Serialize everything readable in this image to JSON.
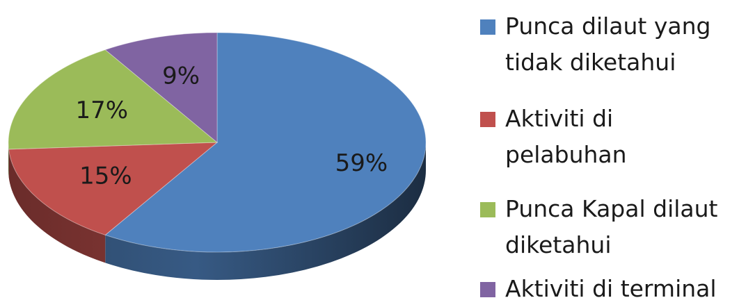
{
  "chart_data": {
    "type": "pie",
    "style": "3d",
    "legend_position": "right",
    "slices": [
      {
        "label": "Punca dilaut yang tidak diketahui",
        "value": 59,
        "data_label": "59%",
        "color": "#4f81bd"
      },
      {
        "label": "Aktiviti di pelabuhan",
        "value": 15,
        "data_label": "15%",
        "color": "#c0504d"
      },
      {
        "label": "Punca Kapal dilaut diketahui",
        "value": 17,
        "data_label": "17%",
        "color": "#9bbb59"
      },
      {
        "label": "Aktiviti di terminal",
        "value": 9,
        "data_label": "9%",
        "color": "#8064a2"
      }
    ]
  }
}
